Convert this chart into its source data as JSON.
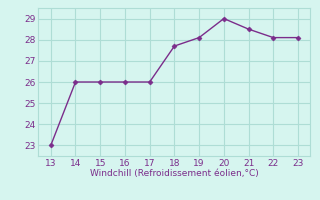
{
  "x": [
    13,
    14,
    15,
    16,
    17,
    18,
    19,
    20,
    21,
    22,
    23
  ],
  "y": [
    23,
    26,
    26,
    26,
    26,
    27.7,
    28.1,
    29.0,
    28.5,
    28.1,
    28.1
  ],
  "line_color": "#7B2D8B",
  "marker_color": "#7B2D8B",
  "bg_color": "#D6F5EF",
  "grid_color": "#AEDDD5",
  "xlabel": "Windchill (Refroidissement éolien,°C)",
  "xlabel_color": "#7B2D8B",
  "tick_color": "#7B2D8B",
  "xlim": [
    12.5,
    23.5
  ],
  "ylim": [
    22.5,
    29.5
  ],
  "xticks": [
    13,
    14,
    15,
    16,
    17,
    18,
    19,
    20,
    21,
    22,
    23
  ],
  "yticks": [
    23,
    24,
    25,
    26,
    27,
    28,
    29
  ]
}
